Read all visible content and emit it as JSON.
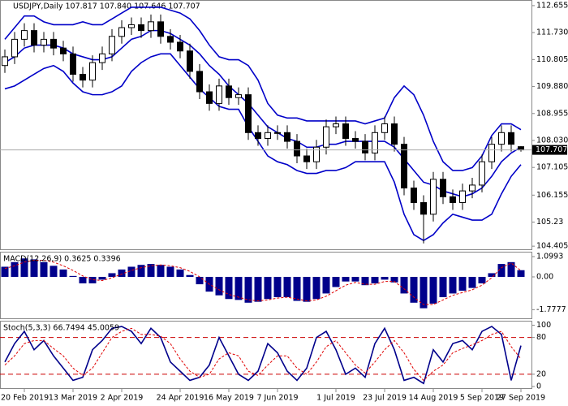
{
  "chart_data": [
    {
      "type": "candlestick",
      "title": "USDJPY,Daily  107.817 107.840 107.646 107.707",
      "open": [
        110.6,
        110.9,
        111.5,
        111.8,
        111.3,
        111.5,
        111.2,
        111.0,
        110.3,
        110.1,
        110.7,
        111.0,
        111.6,
        111.9,
        112.0,
        111.8,
        112.1,
        111.6,
        111.4,
        111.1,
        110.4,
        109.7,
        109.3,
        109.9,
        109.5,
        109.6,
        108.3,
        108.1,
        108.3,
        108.3,
        108.0,
        107.5,
        107.3,
        107.8,
        108.5,
        108.6,
        108.1,
        108.0,
        107.6,
        108.3,
        108.6,
        107.9,
        106.4,
        105.9,
        105.5,
        106.7,
        106.1,
        105.9,
        106.3,
        106.5,
        107.3,
        107.9,
        108.3,
        107.817
      ],
      "high": [
        111.15,
        111.75,
        112.05,
        112.05,
        111.75,
        111.75,
        111.45,
        111.25,
        110.55,
        110.95,
        111.25,
        111.85,
        112.15,
        112.25,
        112.25,
        112.35,
        112.35,
        111.85,
        111.65,
        111.35,
        110.65,
        109.95,
        110.15,
        110.15,
        109.85,
        109.85,
        108.55,
        108.55,
        108.55,
        108.55,
        108.25,
        107.75,
        108.05,
        108.75,
        108.85,
        108.85,
        108.35,
        108.25,
        108.55,
        108.85,
        108.85,
        108.15,
        106.65,
        106.15,
        106.95,
        106.95,
        106.35,
        106.55,
        106.75,
        107.55,
        108.15,
        108.55,
        108.55,
        107.84
      ],
      "low": [
        110.35,
        110.65,
        111.25,
        111.05,
        111.05,
        110.95,
        110.75,
        110.05,
        109.85,
        109.85,
        110.45,
        110.75,
        111.35,
        111.65,
        111.55,
        111.55,
        111.35,
        111.15,
        110.85,
        110.15,
        109.45,
        109.05,
        109.05,
        109.25,
        109.25,
        108.05,
        107.85,
        107.85,
        108.05,
        107.75,
        107.25,
        107.05,
        107.05,
        107.55,
        108.25,
        107.85,
        107.75,
        107.35,
        107.35,
        108.05,
        107.65,
        106.15,
        105.65,
        104.5,
        105.25,
        105.85,
        105.65,
        105.65,
        106.05,
        106.25,
        107.05,
        107.65,
        107.65,
        107.646
      ],
      "close": [
        110.9,
        111.5,
        111.8,
        111.3,
        111.5,
        111.2,
        111.0,
        110.3,
        110.1,
        110.7,
        111.0,
        111.6,
        111.9,
        112.0,
        111.8,
        112.1,
        111.6,
        111.4,
        111.1,
        110.4,
        109.7,
        109.3,
        109.9,
        109.5,
        109.6,
        108.3,
        108.1,
        108.3,
        108.3,
        108.0,
        107.5,
        107.3,
        107.8,
        108.5,
        108.6,
        108.1,
        108.0,
        107.6,
        108.3,
        108.6,
        107.9,
        106.4,
        105.9,
        105.5,
        106.7,
        106.1,
        105.9,
        106.3,
        106.5,
        107.3,
        107.9,
        108.3,
        107.9,
        107.707
      ],
      "series": [
        {
          "color": "#0000c8",
          "values": [
            111.5,
            111.9,
            112.3,
            112.3,
            112.1,
            112.0,
            112.0,
            112.0,
            112.1,
            112.0,
            112.0,
            112.2,
            112.4,
            112.6,
            112.6,
            112.6,
            112.6,
            112.5,
            112.4,
            112.2,
            111.8,
            111.3,
            110.9,
            110.8,
            110.8,
            110.6,
            110.1,
            109.3,
            108.9,
            108.8,
            108.8,
            108.7,
            108.7,
            108.7,
            108.7,
            108.7,
            108.7,
            108.6,
            108.7,
            108.8,
            109.5,
            109.9,
            109.6,
            108.9,
            108.0,
            107.3,
            107.0,
            107.0,
            107.1,
            107.5,
            108.2,
            108.6,
            108.6,
            108.4
          ]
        },
        {
          "color": "#0000c8",
          "values": [
            110.7,
            110.9,
            111.2,
            111.3,
            111.3,
            111.3,
            111.2,
            111.0,
            110.9,
            110.8,
            110.8,
            110.9,
            111.2,
            111.5,
            111.6,
            111.8,
            111.8,
            111.7,
            111.5,
            111.3,
            111.0,
            110.6,
            110.3,
            109.9,
            109.6,
            109.3,
            108.9,
            108.5,
            108.3,
            108.1,
            108.0,
            107.8,
            107.8,
            107.9,
            107.9,
            108.0,
            108.0,
            108.0,
            108.0,
            108.0,
            107.8,
            107.4,
            107.0,
            106.6,
            106.5,
            106.3,
            106.2,
            106.1,
            106.2,
            106.4,
            106.8,
            107.3,
            107.6,
            107.8
          ]
        },
        {
          "color": "#0000c8",
          "values": [
            109.8,
            109.9,
            110.1,
            110.3,
            110.5,
            110.6,
            110.4,
            110.0,
            109.7,
            109.6,
            109.6,
            109.7,
            109.9,
            110.4,
            110.7,
            110.9,
            111.0,
            111.0,
            110.6,
            110.2,
            109.8,
            109.5,
            109.2,
            109.1,
            109.1,
            108.5,
            108.0,
            107.5,
            107.3,
            107.2,
            107.0,
            106.9,
            106.9,
            107.0,
            107.0,
            107.1,
            107.3,
            107.3,
            107.3,
            107.3,
            106.6,
            105.5,
            104.8,
            104.6,
            104.8,
            105.2,
            105.5,
            105.4,
            105.3,
            105.3,
            105.5,
            106.2,
            106.8,
            107.2
          ]
        }
      ],
      "last_price": 107.707,
      "ylim": [
        104.27,
        112.82
      ],
      "yticks": [
        112.655,
        {
          "value": 111.73,
          "label": "111.730"
        },
        110.805,
        {
          "value": 109.88,
          "label": "109.880"
        },
        108.955,
        {
          "value": 108.03,
          "label": "108.030"
        },
        107.105,
        106.155,
        105.23,
        104.405
      ]
    },
    {
      "type": "macd",
      "title": "MACD(12,26,9) 0.3625 0.3396",
      "values": [
        0.55,
        0.8,
        1.0,
        0.95,
        0.8,
        0.6,
        0.4,
        0.05,
        -0.35,
        -0.35,
        -0.15,
        0.2,
        0.4,
        0.55,
        0.65,
        0.7,
        0.65,
        0.55,
        0.4,
        0.1,
        -0.4,
        -0.8,
        -1.0,
        -1.2,
        -1.25,
        -1.4,
        -1.35,
        -1.2,
        -1.1,
        -1.1,
        -1.3,
        -1.35,
        -1.2,
        -0.9,
        -0.55,
        -0.25,
        -0.25,
        -0.45,
        -0.35,
        -0.15,
        -0.3,
        -0.9,
        -1.4,
        -1.7,
        -1.45,
        -1.1,
        -0.9,
        -0.75,
        -0.6,
        -0.35,
        0.2,
        0.7,
        0.8,
        0.3625
      ],
      "color": "#00008b",
      "signal": {
        "color": "#e00000",
        "values": [
          0.45,
          0.6,
          0.8,
          0.9,
          0.9,
          0.8,
          0.6,
          0.35,
          0.05,
          -0.15,
          -0.2,
          -0.05,
          0.15,
          0.35,
          0.5,
          0.6,
          0.65,
          0.6,
          0.5,
          0.3,
          0.0,
          -0.4,
          -0.7,
          -0.95,
          -1.1,
          -1.25,
          -1.3,
          -1.25,
          -1.15,
          -1.1,
          -1.2,
          -1.3,
          -1.25,
          -1.05,
          -0.75,
          -0.45,
          -0.3,
          -0.4,
          -0.4,
          -0.25,
          -0.25,
          -0.65,
          -1.1,
          -1.5,
          -1.5,
          -1.25,
          -1.0,
          -0.85,
          -0.7,
          -0.45,
          -0.05,
          0.5,
          0.75,
          0.3396
        ]
      },
      "ylim": [
        -2.29,
        1.32
      ],
      "yticks": [
        1.0993,
        {
          "value": 0,
          "label": "0.00"
        },
        -1.7777
      ]
    },
    {
      "type": "stochastic",
      "title": "Stoch(5,3,3) 66.7494 45.0059",
      "series": [
        {
          "color": "#00008b",
          "values": [
            40,
            70,
            90,
            60,
            75,
            50,
            30,
            10,
            15,
            60,
            75,
            95,
            98,
            90,
            70,
            95,
            80,
            40,
            25,
            10,
            15,
            35,
            80,
            50,
            20,
            10,
            25,
            70,
            55,
            25,
            10,
            30,
            80,
            90,
            60,
            20,
            30,
            15,
            70,
            95,
            60,
            10,
            15,
            5,
            60,
            40,
            70,
            75,
            60,
            90,
            98,
            85,
            10,
            66.7494
          ]
        },
        {
          "color": "#e00000",
          "dashed": true,
          "values": [
            35,
            50,
            70,
            75,
            75,
            62,
            50,
            30,
            18,
            30,
            55,
            80,
            90,
            95,
            85,
            85,
            82,
            70,
            45,
            25,
            15,
            20,
            45,
            55,
            50,
            25,
            18,
            35,
            50,
            50,
            30,
            20,
            40,
            65,
            75,
            55,
            35,
            22,
            40,
            60,
            75,
            55,
            28,
            10,
            25,
            35,
            55,
            62,
            68,
            75,
            85,
            90,
            65,
            45.0059
          ]
        }
      ],
      "levels": [
        80,
        20
      ],
      "ylim": [
        -4,
        106
      ],
      "yticks": [
        100,
        80,
        20,
        0
      ],
      "xticks": [
        {
          "value": 2,
          "label": "20 Feb 2019"
        },
        {
          "value": 7,
          "label": "13 Mar 2019"
        },
        {
          "value": 12,
          "label": "2 Apr 2019"
        },
        {
          "value": 18,
          "label": "24 Apr 2019"
        },
        {
          "value": 23,
          "label": "16 May 2019"
        },
        {
          "value": 28,
          "label": "7 Jun 2019"
        },
        {
          "value": 34,
          "label": "1 Jul 2019"
        },
        {
          "value": 39,
          "label": "23 Jul 2019"
        },
        {
          "value": 44,
          "label": "14 Aug 2019"
        },
        {
          "value": 49,
          "label": "5 Sep 2019"
        },
        {
          "value": 53,
          "label": "27 Sep 2019"
        }
      ]
    }
  ]
}
